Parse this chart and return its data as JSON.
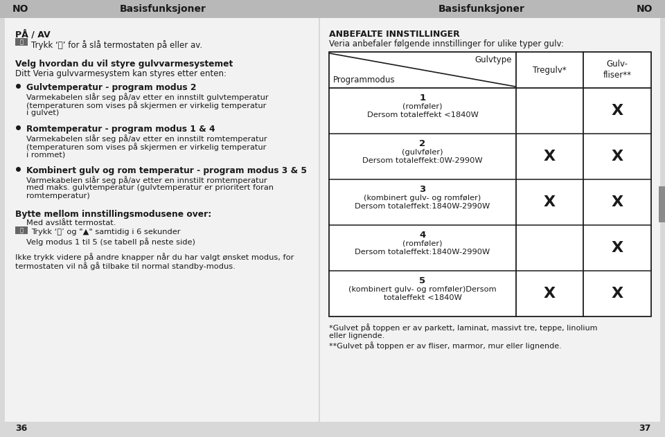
{
  "page_width": 9.6,
  "page_height": 6.31,
  "bg_color": "#d4d4d4",
  "white": "#ffffff",
  "black": "#1a1a1a",
  "header_bg": "#c0c0c0",
  "header_left": "NO",
  "header_center_left": "Basisfunksjoner",
  "header_center_right": "Basisfunksjoner",
  "header_right": "NO",
  "left_title": "PÅ / AV",
  "left_line1": "Trykk ‘⏻’ for å slå termostaten på eller av.",
  "section_title": "Velg hvordan du vil styre gulvvarmesystemet",
  "section_sub": "Ditt Veria gulvvarmesystem kan styres etter enten:",
  "b1_title": "Gulvtemperatur - program modus 2",
  "b1_text1": "Varmekabelen slår seg på/av etter en innstilt gulvtemperatur",
  "b1_text2": "(temperaturen som vises på skjermen er virkelig temperatur",
  "b1_text3": "i gulvet)",
  "b2_title": "Romtemperatur - program modus 1 & 4",
  "b2_text1": "Varmekabelen slår seg på/av etter en innstilt romtemperatur",
  "b2_text2": "(temperaturen som vises på skjermen er virkelig temperatur",
  "b2_text3": "i rommet)",
  "b3_title": "Kombinert gulv og rom temperatur - program modus 3 & 5",
  "b3_text1": "Varmekabelen slår seg på/av etter en innstilt romtemperatur",
  "b3_text2": "med maks. gulvtemperatur (gulvtemperatur er prioritert foran",
  "b3_text3": "romtemperatur)",
  "bytte_title": "Bytte mellom innstillingsmodusene over:",
  "bytte_1": "Med avslått termostat.",
  "bytte_2a": "Trykk ‘⏻’ og “",
  "bytte_2b": "▲",
  "bytte_2c": "” samtidig i 6 sekunder",
  "bytte_2": "Trykk ‘⏻’ og \"▲\" samtidig i 6 sekunder",
  "bytte_3": "Velg modus 1 til 5 (se tabell på neste side)",
  "warning": "Ikke trykk videre på andre knapper når du har valgt ønsket modus, for",
  "warning2": "termostaten vil nå gå tilbake til normal standby-modus.",
  "page_left": "36",
  "page_right": "37",
  "right_title": "ANBEFALTE INNSTILLINGER",
  "right_sub": "Veria anbefaler følgende innstillinger for ulike typer gulv:",
  "tbl_h1": "Gulvtype",
  "tbl_h2": "Programmodus",
  "tbl_h3": "Tregulv*",
  "tbl_h4": "Gulv-\nfliser**",
  "rows": [
    {
      "num": "1",
      "d1": "(romføler)",
      "d2": "Dersom totaleffekt <1840W",
      "t": false,
      "f": true
    },
    {
      "num": "2",
      "d1": "(gulvføler)",
      "d2": "Dersom totaleffekt:0W-2990W",
      "t": true,
      "f": true
    },
    {
      "num": "3",
      "d1": "(kombinert gulv- og romføler)",
      "d2": "Dersom totaleffekt:1840W-2990W",
      "t": true,
      "f": true
    },
    {
      "num": "4",
      "d1": "(romføler)",
      "d2": "Dersom totaleffekt:1840W-2990W",
      "t": false,
      "f": true
    },
    {
      "num": "5",
      "d1": "(kombinert gulv- og romføler)Dersom",
      "d2": "totaleffekt <1840W",
      "t": true,
      "f": true
    }
  ],
  "fn1": "*Gulvet på toppen er av parkett, laminat, massivt tre, teppe, linolium",
  "fn2": "eller lignende.",
  "fn3": "**Gulvet på toppen er av fliser, marmor, mur eller lignende.",
  "side_tab_color": "#8a8a8a"
}
